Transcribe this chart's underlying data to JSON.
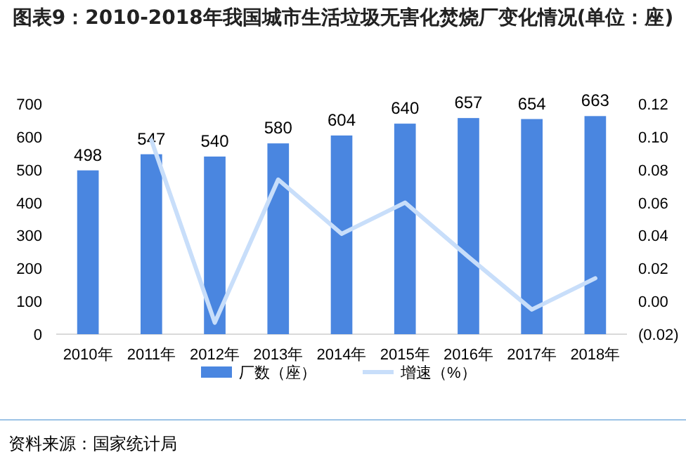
{
  "chart_data": {
    "type": "bar",
    "title": "图表9：2010-2018年我国城市生活垃圾无害化焚烧厂变化情况(单位：座)",
    "categories": [
      "2010年",
      "2011年",
      "2012年",
      "2013年",
      "2014年",
      "2015年",
      "2016年",
      "2017年",
      "2018年"
    ],
    "series": [
      {
        "name": "厂数（座）",
        "color": "#4a86e0",
        "values": [
          498,
          547,
          540,
          580,
          604,
          640,
          657,
          654,
          663
        ],
        "value_labels": [
          "498",
          "547",
          "540",
          "580",
          "604",
          "640",
          "657",
          "654",
          "663"
        ]
      },
      {
        "name": "增速（%）",
        "type": "line",
        "axis": "y2",
        "color": "#c8defa",
        "values": [
          null,
          0.098,
          -0.013,
          0.074,
          0.041,
          0.06,
          0.027,
          -0.005,
          0.014
        ]
      }
    ],
    "ylim": [
      0,
      700
    ],
    "yticks": [
      0,
      100,
      200,
      300,
      400,
      500,
      600,
      700
    ],
    "y2lim": [
      -0.02,
      0.12
    ],
    "y2ticks": [
      {
        "value": -0.02,
        "label": "(0.02)"
      },
      {
        "value": 0,
        "label": "0.00"
      },
      {
        "value": 0.02,
        "label": "0.02"
      },
      {
        "value": 0.04,
        "label": "0.04"
      },
      {
        "value": 0.06,
        "label": "0.06"
      },
      {
        "value": 0.08,
        "label": "0.08"
      },
      {
        "value": 0.1,
        "label": "0.10"
      },
      {
        "value": 0.12,
        "label": "0.12"
      }
    ],
    "legend": "bottom",
    "annotations": [
      "资料来源：国家统计局"
    ]
  }
}
